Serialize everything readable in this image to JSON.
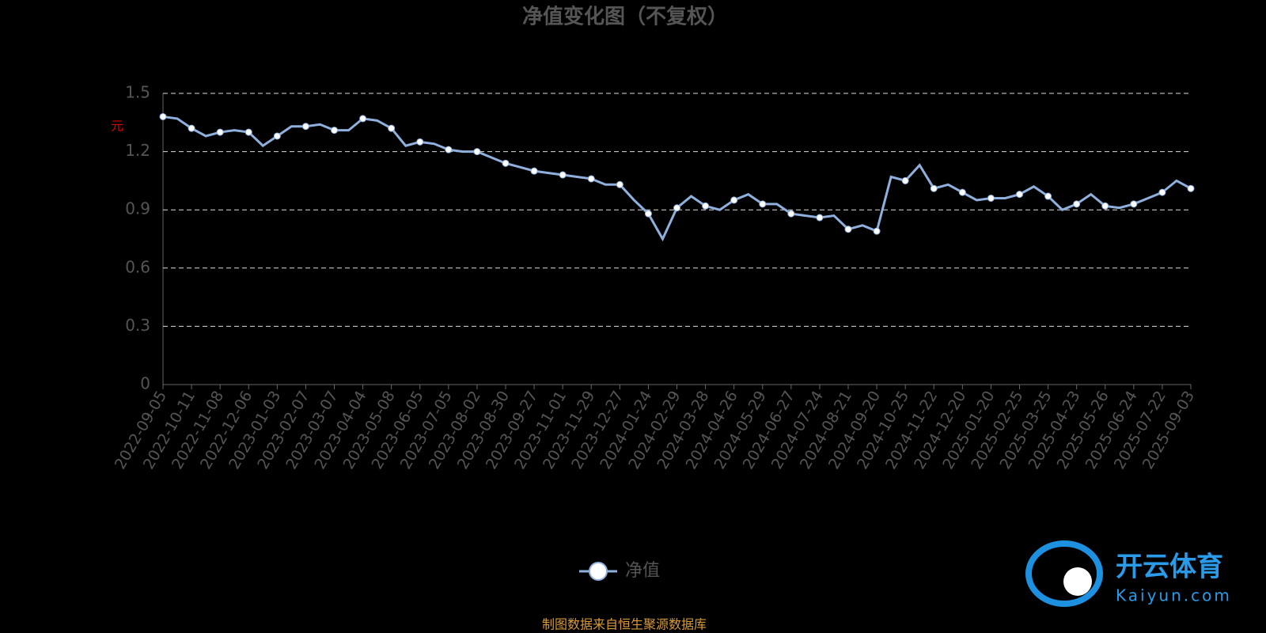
{
  "chart_data": {
    "type": "line",
    "title": "净值变化图（不复权）",
    "y_label": "元",
    "categories": [
      "2022-09-05",
      null,
      "2022-10-11",
      null,
      "2022-11-08",
      null,
      "2022-12-06",
      null,
      "2023-01-03",
      null,
      "2023-02-07",
      null,
      "2023-03-07",
      null,
      "2023-04-04",
      null,
      "2023-05-08",
      null,
      "2023-06-05",
      null,
      "2023-07-05",
      null,
      "2023-08-02",
      null,
      "2023-08-30",
      null,
      "2023-09-27",
      null,
      "2023-11-01",
      null,
      "2023-11-29",
      null,
      "2023-12-27",
      null,
      "2024-01-24",
      null,
      "2024-02-29",
      null,
      "2024-03-28",
      null,
      "2024-04-26",
      null,
      "2024-05-29",
      null,
      "2024-06-27",
      null,
      "2024-07-24",
      null,
      "2024-08-21",
      null,
      "2024-09-20",
      null,
      "2024-10-25",
      null,
      "2024-11-22",
      null,
      "2024-12-20",
      null,
      "2025-01-20",
      null,
      "2025-02-25",
      null,
      "2025-03-25",
      null,
      "2025-04-23",
      null,
      "2025-05-26",
      null,
      "2025-06-24",
      null,
      "2025-07-22",
      null,
      "2025-09-03"
    ],
    "series": [
      {
        "name": "净值",
        "color": "#8fb0dc",
        "values": [
          1.38,
          1.37,
          1.32,
          1.28,
          1.3,
          1.31,
          1.3,
          1.23,
          1.28,
          1.33,
          1.33,
          1.34,
          1.31,
          1.31,
          1.37,
          1.36,
          1.32,
          1.23,
          1.25,
          1.24,
          1.21,
          1.2,
          1.2,
          1.17,
          1.14,
          1.12,
          1.1,
          1.09,
          1.08,
          1.07,
          1.06,
          1.03,
          1.03,
          0.95,
          0.88,
          0.75,
          0.91,
          0.97,
          0.92,
          0.9,
          0.95,
          0.98,
          0.93,
          0.93,
          0.88,
          0.87,
          0.86,
          0.87,
          0.8,
          0.82,
          0.79,
          1.07,
          1.05,
          1.13,
          1.01,
          1.03,
          0.99,
          0.95,
          0.96,
          0.96,
          0.98,
          1.02,
          0.97,
          0.9,
          0.93,
          0.98,
          0.92,
          0.91,
          0.93,
          0.96,
          0.99,
          1.05,
          1.01
        ]
      }
    ],
    "ylim": [
      0,
      1.5
    ],
    "yticks": [
      0,
      0.3,
      0.6,
      0.9,
      1.2,
      1.5
    ],
    "grid": true,
    "source": "制图数据来自恒生聚源数据库",
    "watermark": {
      "name": "开云体育",
      "site": "Kaiyun.com"
    }
  }
}
